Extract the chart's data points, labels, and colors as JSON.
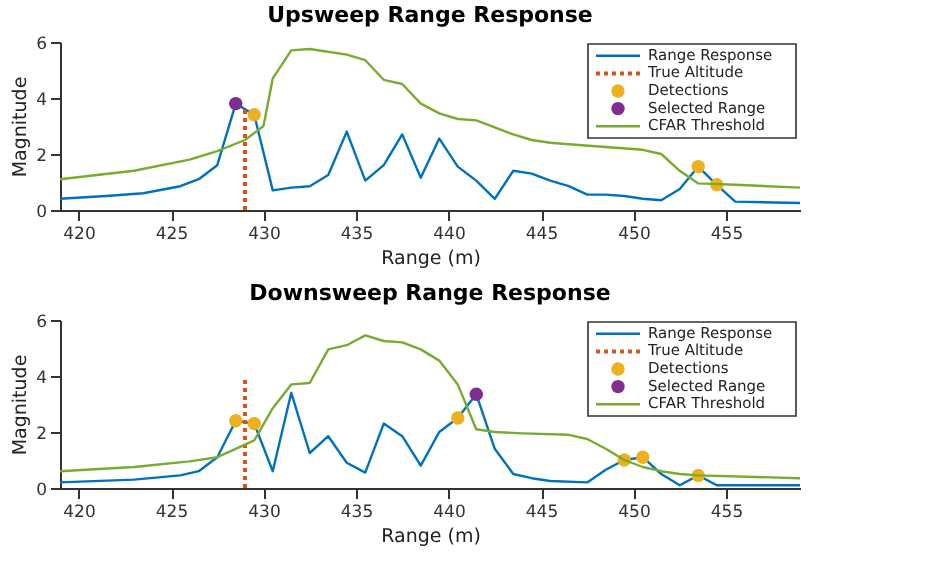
{
  "chart_data": [
    {
      "type": "line",
      "title": "Upsweep Range Response",
      "xlabel": "Range (m)",
      "ylabel": "Magnitude",
      "xlim": [
        419,
        459
      ],
      "xticks": [
        420,
        425,
        430,
        435,
        440,
        445,
        450,
        455
      ],
      "ylim": [
        0,
        6
      ],
      "yticks": [
        0,
        2,
        4,
        6
      ],
      "grid": false,
      "legend": "top right",
      "series": [
        {
          "name": "Range Response",
          "type": "line",
          "color": "#0072bd",
          "x": [
            419,
            421.5,
            423.5,
            425.5,
            426.5,
            427.5,
            428.5,
            429.5,
            430.5,
            431.5,
            432.5,
            433.5,
            434.5,
            435.5,
            436.5,
            437.5,
            438.5,
            439.5,
            440.5,
            441.5,
            442.5,
            443.5,
            444.5,
            445.5,
            446.5,
            447.5,
            448.5,
            449.5,
            450.5,
            451.5,
            452.5,
            453.5,
            454.5,
            455.5,
            459
          ],
          "values": [
            0.4,
            0.5,
            0.6,
            0.85,
            1.1,
            1.6,
            3.8,
            3.4,
            0.7,
            0.8,
            0.85,
            1.25,
            2.8,
            1.05,
            1.6,
            2.7,
            1.15,
            2.55,
            1.55,
            1.05,
            0.4,
            1.4,
            1.3,
            1.05,
            0.85,
            0.55,
            0.55,
            0.5,
            0.4,
            0.35,
            0.75,
            1.55,
            0.9,
            0.3,
            0.25
          ]
        },
        {
          "name": "True Altitude",
          "type": "line",
          "line_style": "dotted",
          "color": "#d95319",
          "x": [
            429,
            429
          ],
          "values": [
            0,
            3.7
          ]
        },
        {
          "name": "Detections",
          "type": "scatter",
          "marker": "circle",
          "color": "#edb120",
          "x": [
            429.5,
            453.5,
            454.5
          ],
          "values": [
            3.4,
            1.55,
            0.9
          ]
        },
        {
          "name": "Selected Range",
          "type": "scatter",
          "marker": "circle",
          "color": "#7e2f8e",
          "x": [
            428.5
          ],
          "values": [
            3.8
          ]
        },
        {
          "name": "CFAR Threshold",
          "type": "line",
          "color": "#77ac30",
          "x": [
            419,
            423,
            426,
            427.5,
            429,
            430,
            430.5,
            431.5,
            432.5,
            434.5,
            435.5,
            436.5,
            437.5,
            438.5,
            439.5,
            440.5,
            441.5,
            442.5,
            443.5,
            444.5,
            445.5,
            446.5,
            448.5,
            450.5,
            451.5,
            452.5,
            453.5,
            455.5,
            459
          ],
          "values": [
            1.1,
            1.4,
            1.8,
            2.1,
            2.5,
            3.0,
            4.7,
            5.7,
            5.75,
            5.55,
            5.35,
            4.65,
            4.5,
            3.8,
            3.45,
            3.25,
            3.2,
            2.95,
            2.7,
            2.5,
            2.4,
            2.35,
            2.25,
            2.15,
            2.0,
            1.4,
            0.95,
            0.9,
            0.8
          ]
        }
      ]
    },
    {
      "type": "line",
      "title": "Downsweep Range Response",
      "xlabel": "Range (m)",
      "ylabel": "Magnitude",
      "xlim": [
        419,
        459
      ],
      "xticks": [
        420,
        425,
        430,
        435,
        440,
        445,
        450,
        455
      ],
      "ylim": [
        0,
        6
      ],
      "yticks": [
        0,
        2,
        4,
        6
      ],
      "grid": false,
      "legend": "top right",
      "series": [
        {
          "name": "Range Response",
          "type": "line",
          "color": "#0072bd",
          "x": [
            419,
            423,
            425.5,
            426.5,
            427.5,
            428.5,
            429.5,
            430.5,
            431.5,
            432.5,
            433.5,
            434.5,
            435.5,
            436.5,
            437.5,
            438.5,
            439.5,
            440.5,
            441.5,
            442.5,
            443.5,
            444.5,
            445.5,
            447.5,
            448.5,
            449.5,
            450.5,
            451.5,
            452.5,
            453.5,
            454.5,
            459
          ],
          "values": [
            0.2,
            0.3,
            0.45,
            0.6,
            1.1,
            2.4,
            2.3,
            0.6,
            3.4,
            1.25,
            1.85,
            0.9,
            0.55,
            2.3,
            1.85,
            0.8,
            2.0,
            2.5,
            3.35,
            1.4,
            0.5,
            0.35,
            0.25,
            0.2,
            0.65,
            1.0,
            1.1,
            0.5,
            0.1,
            0.45,
            0.1,
            0.1
          ]
        },
        {
          "name": "True Altitude",
          "type": "line",
          "line_style": "dotted",
          "color": "#d95319",
          "x": [
            429,
            429
          ],
          "values": [
            0,
            4.0
          ]
        },
        {
          "name": "Detections",
          "type": "scatter",
          "marker": "circle",
          "color": "#edb120",
          "x": [
            428.5,
            429.5,
            440.5,
            449.5,
            450.5,
            453.5
          ],
          "values": [
            2.4,
            2.3,
            2.5,
            1.0,
            1.1,
            0.45
          ]
        },
        {
          "name": "Selected Range",
          "type": "scatter",
          "marker": "circle",
          "color": "#7e2f8e",
          "x": [
            441.5
          ],
          "values": [
            3.35
          ]
        },
        {
          "name": "CFAR Threshold",
          "type": "line",
          "color": "#77ac30",
          "x": [
            419,
            423,
            426,
            427.5,
            428.5,
            429.5,
            430.5,
            431.5,
            432.5,
            433.5,
            434.5,
            435.5,
            436.5,
            437.5,
            438.5,
            439.5,
            440.5,
            441.5,
            442.5,
            444,
            446.5,
            447.5,
            448.5,
            449.5,
            450.5,
            451.5,
            452.5,
            453.5,
            459
          ],
          "values": [
            0.6,
            0.75,
            0.95,
            1.1,
            1.4,
            1.7,
            2.85,
            3.7,
            3.75,
            4.95,
            5.1,
            5.45,
            5.25,
            5.2,
            4.95,
            4.55,
            3.7,
            2.1,
            2.0,
            1.95,
            1.9,
            1.75,
            1.4,
            1.0,
            0.75,
            0.6,
            0.5,
            0.45,
            0.35
          ]
        }
      ]
    }
  ]
}
